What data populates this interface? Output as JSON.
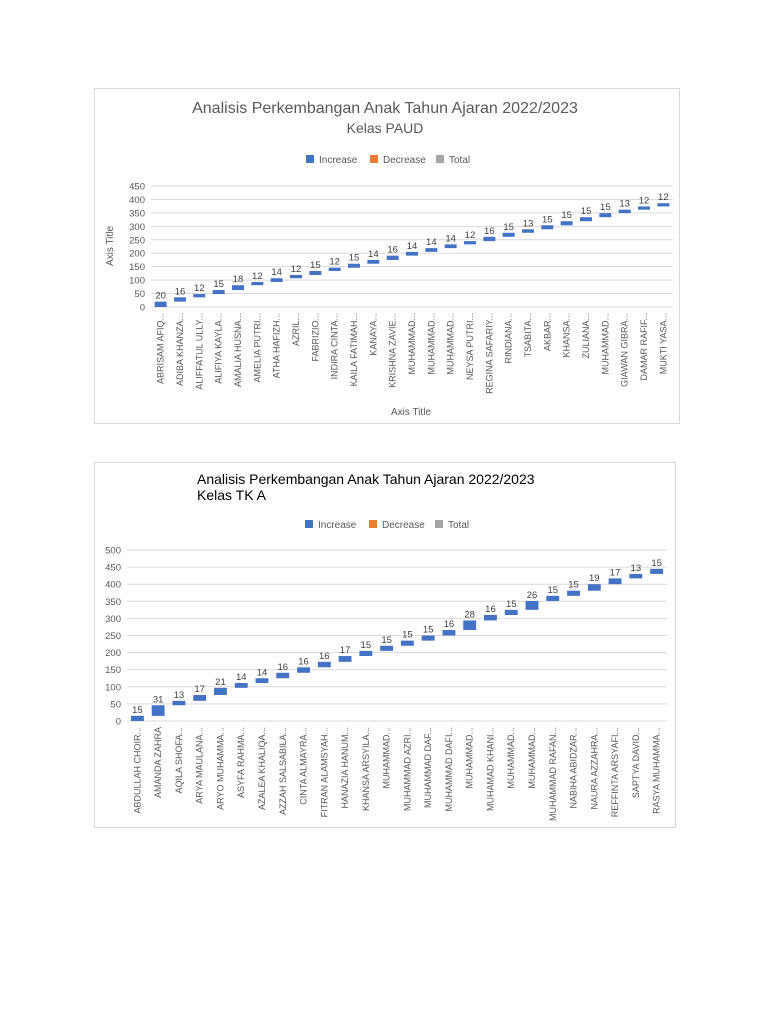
{
  "colors": {
    "increase": "#4472c4",
    "decrease": "#ed7d31",
    "total": "#a5a5a5",
    "grid": "#d9d9d9"
  },
  "chart_data": [
    {
      "type": "bar",
      "subtype": "waterfall",
      "title": "Analisis Perkembangan Anak Tahun Ajaran 2022/2023",
      "subtitle": "Kelas PAUD",
      "legend": [
        "Increase",
        "Decrease",
        "Total"
      ],
      "legend_position": "top",
      "xlabel": "Axis Title",
      "ylabel": "Axis Title",
      "ylim": [
        0,
        450
      ],
      "yticks": [
        "0",
        "50",
        "100",
        "150",
        "200",
        "250",
        "300",
        "350",
        "400",
        "450"
      ],
      "grid": true,
      "categories": [
        "ABRISAM AFIQ...",
        "ADIBA KHANZA...",
        "ALIFFATUL ULLY...",
        "ALIFIYA KAYLA...",
        "AMALIA HUSNA...",
        "AMELIA PUTRI...",
        "ATHA HAFIZH...",
        "AZRIL...",
        "FABRIZIO...",
        "INDIRA CINTA...",
        "KAILA FATIMAH...",
        "KANAYA...",
        "KRISHNA ZAVIE...",
        "MUHAMMAD...",
        "MUHAMMAD...",
        "MUHAMMAD...",
        "NEYSA PUTRI...",
        "REGINA SAFARIY...",
        "RINDIANA...",
        "TSABITA...",
        "AKBAR...",
        "KHANSA...",
        "ZULIANA...",
        "MUHAMMAD...",
        "GIAWAN GIBRA...",
        "DAMAR RAFIF...",
        "MUKTI YASA..."
      ],
      "values": [
        20,
        16,
        12,
        15,
        18,
        12,
        14,
        12,
        15,
        12,
        15,
        14,
        16,
        14,
        14,
        14,
        12,
        16,
        15,
        13,
        15,
        15,
        15,
        15,
        13,
        12,
        12
      ]
    },
    {
      "type": "bar",
      "subtype": "waterfall",
      "title": "Analisis Perkembangan Anak Tahun Ajaran 2022/2023",
      "subtitle": "Kelas TK A",
      "legend": [
        "Increase",
        "Decrease",
        "Total"
      ],
      "legend_position": "top",
      "xlabel": "",
      "ylabel": "",
      "ylim": [
        0,
        500
      ],
      "yticks": [
        "0",
        "50",
        "100",
        "150",
        "200",
        "250",
        "300",
        "350",
        "400",
        "450",
        "500"
      ],
      "grid": true,
      "categories": [
        "ABDULLAH CHOIR...",
        "AMANDA ZAHRA",
        "AQILA SHOFA...",
        "ARYA MAULANA...",
        "ARYO MUHAMMA...",
        "ASYFA RAHMA...",
        "AZALEA KHALIQA...",
        "AZZAH SALSABILA...",
        "CINTA ALMAYRA...",
        "FITRAN ALAMSYAH...",
        "HANAZIA HANUM...",
        "KHANSA ARSYILA...",
        "MUHAMMAD...",
        "MUHAMMAD AZRI...",
        "MUHAMMAD DAF...",
        "MUHAMMAD DAFI...",
        "MUHAMMAD...",
        "MUHAMAD KHANI...",
        "MUHAMMAD...",
        "MUHAMMAD...",
        "MUHAMMAD RAFAN...",
        "NABIHA ABIDZAR...",
        "NAURA AZZAHRA...",
        "REFFINTA ARSYAFI...",
        "SAPTYA DAVID...",
        "RASYA MUHAMMA..."
      ],
      "values": [
        15,
        31,
        13,
        17,
        21,
        14,
        14,
        16,
        16,
        16,
        17,
        15,
        15,
        15,
        15,
        16,
        28,
        16,
        15,
        26,
        15,
        15,
        19,
        17,
        13,
        15
      ]
    }
  ]
}
